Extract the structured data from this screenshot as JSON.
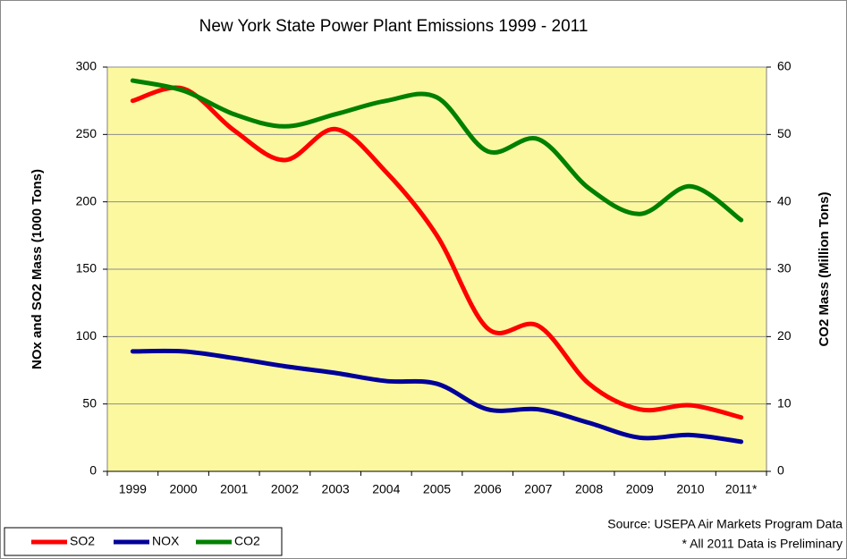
{
  "chart_data": {
    "type": "line",
    "title": "New York State Power Plant Emissions 1999 - 2011",
    "y_label": "NOx and SO2 Mass (1000 Tons)",
    "y2_label": "CO2 Mass (Million Tons)",
    "categories": [
      "1999",
      "2000",
      "2001",
      "2002",
      "2003",
      "2004",
      "2005",
      "2006",
      "2007",
      "2008",
      "2009",
      "2010",
      "2011*"
    ],
    "series": [
      {
        "name": "SO2",
        "color": "#ff0000",
        "values": [
          275,
          284,
          253,
          231,
          254,
          222,
          175,
          106,
          108,
          65,
          46,
          49,
          40
        ]
      },
      {
        "name": "NOX",
        "color": "#000099",
        "values": [
          89,
          89,
          84,
          78,
          73,
          67,
          65,
          46,
          46,
          36,
          25,
          27,
          22
        ]
      },
      {
        "name": "CO2",
        "color": "#008000",
        "axis": "y2",
        "values": [
          58,
          56.5,
          53,
          51.2,
          53,
          55,
          55.5,
          47.5,
          49.3,
          42,
          38.2,
          42.3,
          37.3
        ]
      }
    ],
    "ylim": [
      0,
      300
    ],
    "yticks": [
      0,
      50,
      100,
      150,
      200,
      250,
      300
    ],
    "y2lim": [
      0,
      60
    ],
    "y2ticks": [
      0,
      10,
      20,
      30,
      40,
      50,
      60
    ],
    "grid": true,
    "legend": "bottom-left",
    "annotations": [
      "Source: USEPA Air Markets Program Data",
      "* All 2011 Data is Preliminary"
    ]
  }
}
